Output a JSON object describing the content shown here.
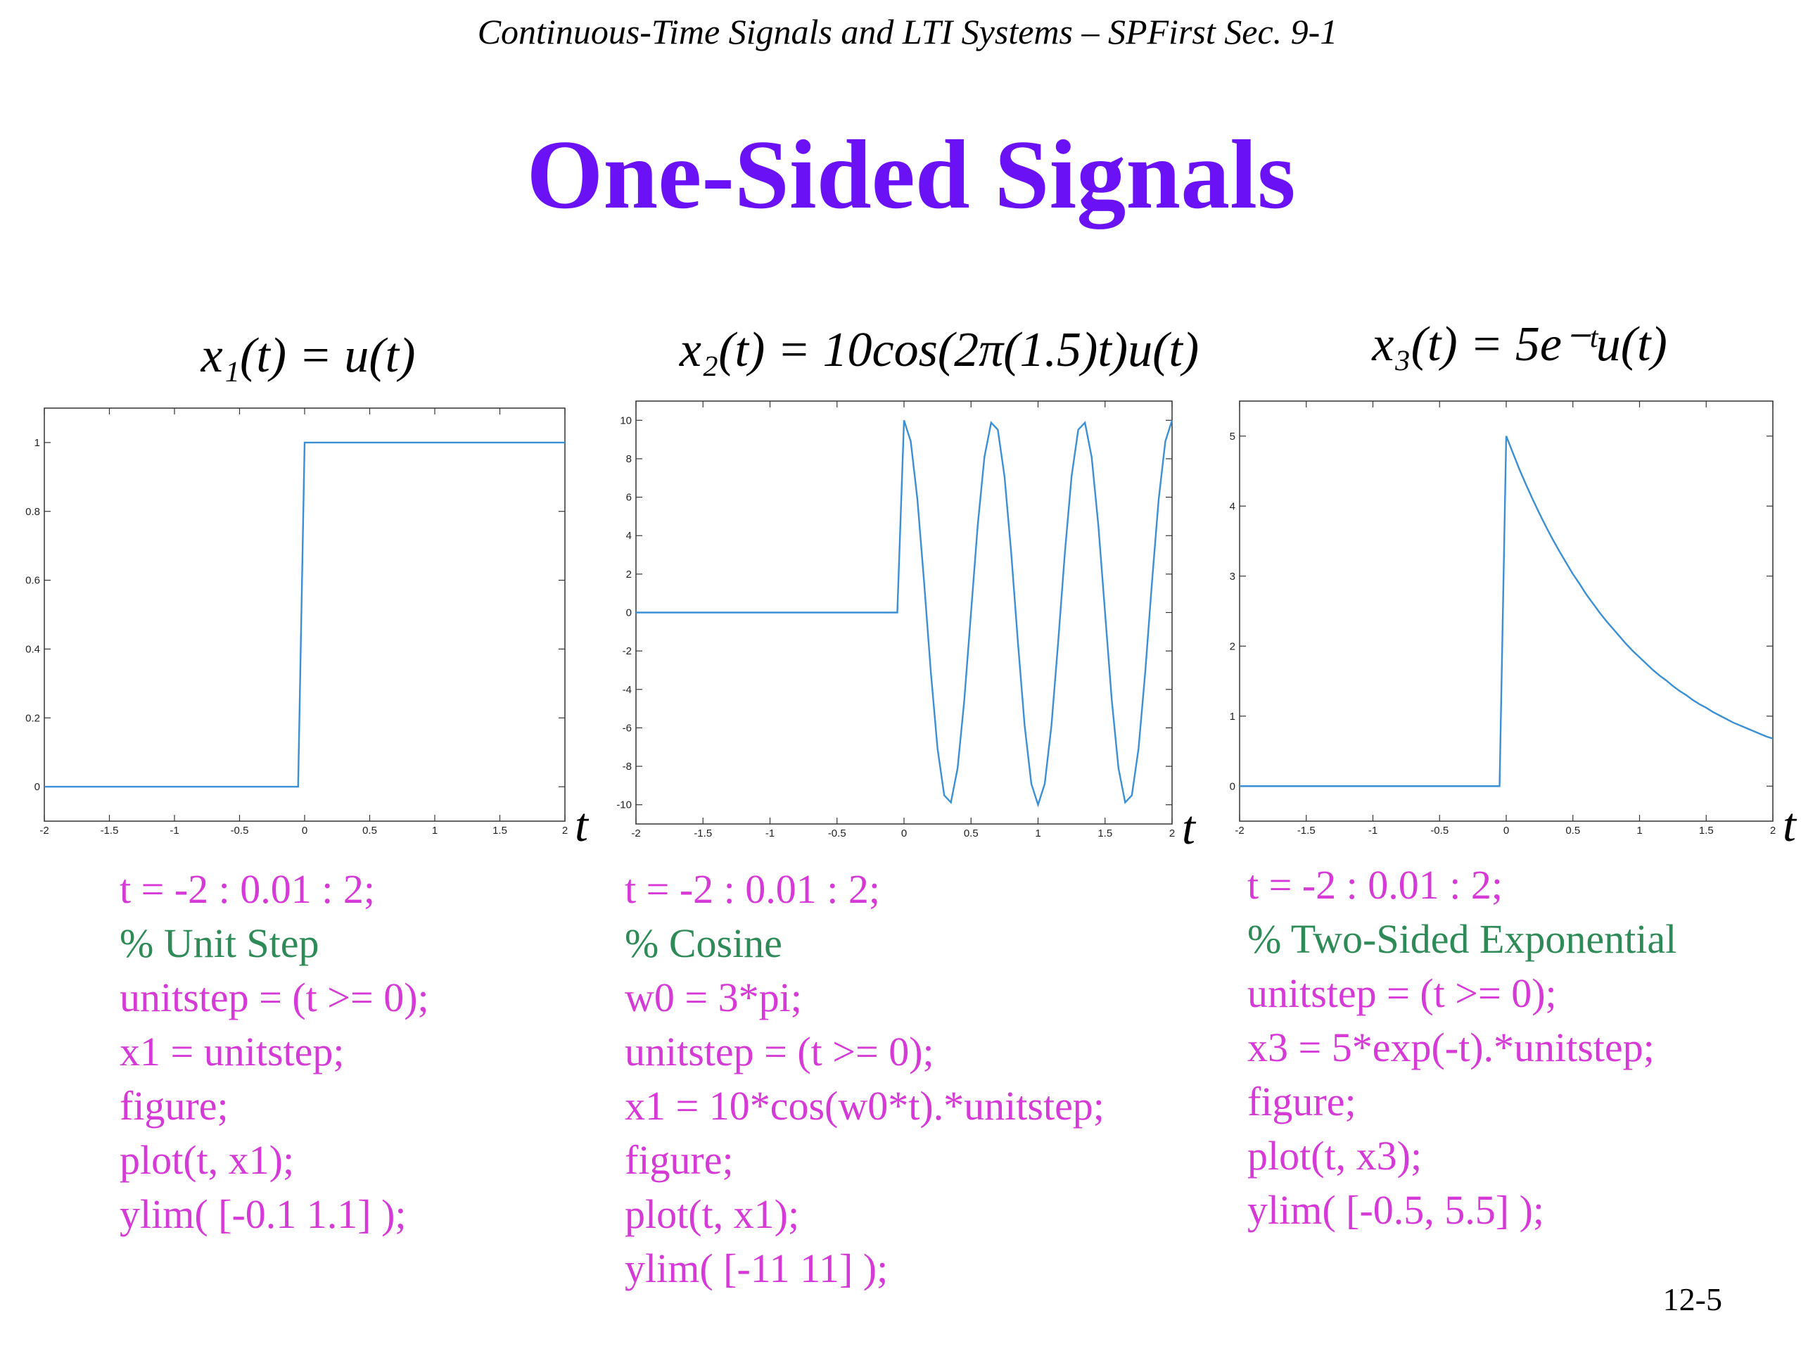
{
  "header": "Continuous-Time Signals and LTI Systems – SPFirst Sec. 9-1",
  "title": "One-Sided Signals",
  "page_number": "12-5",
  "chart_data": [
    {
      "type": "line",
      "title": "x₁(t) = u(t)",
      "xlabel": "t",
      "x": [
        -2,
        -1.95,
        -1.9,
        -1.85,
        -1.8,
        -1.75,
        -1.7,
        -1.65,
        -1.6,
        -1.55,
        -1.5,
        -1.45,
        -1.4,
        -1.35,
        -1.3,
        -1.25,
        -1.2,
        -1.15,
        -1.1,
        -1.05,
        -1,
        -0.95,
        -0.9,
        -0.85,
        -0.8,
        -0.75,
        -0.7,
        -0.65,
        -0.6,
        -0.55,
        -0.5,
        -0.45,
        -0.4,
        -0.35,
        -0.3,
        -0.25,
        -0.2,
        -0.15,
        -0.1,
        -0.05,
        0,
        0.05,
        0.1,
        0.15,
        0.2,
        0.25,
        0.3,
        0.35,
        0.4,
        0.45,
        0.5,
        0.55,
        0.6,
        0.65,
        0.7,
        0.75,
        0.8,
        0.85,
        0.9,
        0.95,
        1,
        1.05,
        1.1,
        1.15,
        1.2,
        1.25,
        1.3,
        1.35,
        1.4,
        1.45,
        1.5,
        1.55,
        1.6,
        1.65,
        1.7,
        1.75,
        1.8,
        1.85,
        1.9,
        1.95,
        2
      ],
      "series": [
        {
          "color": "#3a8fd5",
          "values": [
            0,
            0,
            0,
            0,
            0,
            0,
            0,
            0,
            0,
            0,
            0,
            0,
            0,
            0,
            0,
            0,
            0,
            0,
            0,
            0,
            0,
            0,
            0,
            0,
            0,
            0,
            0,
            0,
            0,
            0,
            0,
            0,
            0,
            0,
            0,
            0,
            0,
            0,
            0,
            0,
            1,
            1,
            1,
            1,
            1,
            1,
            1,
            1,
            1,
            1,
            1,
            1,
            1,
            1,
            1,
            1,
            1,
            1,
            1,
            1,
            1,
            1,
            1,
            1,
            1,
            1,
            1,
            1,
            1,
            1,
            1,
            1,
            1,
            1,
            1,
            1,
            1,
            1,
            1,
            1,
            1
          ]
        }
      ],
      "xlim": [
        -2,
        2
      ],
      "ylim": [
        -0.1,
        1.1
      ],
      "xticks": [
        -2,
        -1.5,
        -1,
        -0.5,
        0,
        0.5,
        1,
        1.5,
        2
      ],
      "yticks": [
        0,
        0.2,
        0.4,
        0.6,
        0.8,
        1
      ]
    },
    {
      "type": "line",
      "title": "x₂(t) = 10cos(2π(1.5)t)u(t)",
      "xlabel": "t",
      "x": [
        -2,
        -1.95,
        -1.9,
        -1.85,
        -1.8,
        -1.75,
        -1.7,
        -1.65,
        -1.6,
        -1.55,
        -1.5,
        -1.45,
        -1.4,
        -1.35,
        -1.3,
        -1.25,
        -1.2,
        -1.15,
        -1.1,
        -1.05,
        -1,
        -0.95,
        -0.9,
        -0.85,
        -0.8,
        -0.75,
        -0.7,
        -0.65,
        -0.6,
        -0.55,
        -0.5,
        -0.45,
        -0.4,
        -0.35,
        -0.3,
        -0.25,
        -0.2,
        -0.15,
        -0.1,
        -0.05,
        0,
        0.05,
        0.1,
        0.15,
        0.2,
        0.25,
        0.3,
        0.35,
        0.4,
        0.45,
        0.5,
        0.55,
        0.6,
        0.65,
        0.7,
        0.75,
        0.8,
        0.85,
        0.9,
        0.95,
        1,
        1.05,
        1.1,
        1.15,
        1.2,
        1.25,
        1.3,
        1.35,
        1.4,
        1.45,
        1.5,
        1.55,
        1.6,
        1.65,
        1.7,
        1.75,
        1.8,
        1.85,
        1.9,
        1.95,
        2
      ],
      "series": [
        {
          "color": "#3a8fd5",
          "values": [
            0,
            0,
            0,
            0,
            0,
            0,
            0,
            0,
            0,
            0,
            0,
            0,
            0,
            0,
            0,
            0,
            0,
            0,
            0,
            0,
            0,
            0,
            0,
            0,
            0,
            0,
            0,
            0,
            0,
            0,
            0,
            0,
            0,
            0,
            0,
            0,
            0,
            0,
            0,
            0,
            10,
            8.91,
            5.88,
            1.56,
            -3.09,
            -7.07,
            -9.51,
            -9.88,
            -8.09,
            -4.54,
            0,
            4.54,
            8.09,
            9.88,
            9.51,
            7.07,
            3.09,
            -1.56,
            -5.88,
            -8.91,
            -10,
            -8.91,
            -5.88,
            -1.56,
            3.09,
            7.07,
            9.51,
            9.88,
            8.09,
            4.54,
            0,
            -4.54,
            -8.09,
            -9.88,
            -9.51,
            -7.07,
            -3.09,
            1.56,
            5.88,
            8.91,
            10
          ]
        }
      ],
      "xlim": [
        -2,
        2
      ],
      "ylim": [
        -11,
        11
      ],
      "xticks": [
        -2,
        -1.5,
        -1,
        -0.5,
        0,
        0.5,
        1,
        1.5,
        2
      ],
      "yticks": [
        -10,
        -8,
        -6,
        -4,
        -2,
        0,
        2,
        4,
        6,
        8,
        10
      ]
    },
    {
      "type": "line",
      "title": "x₃(t) = 5e⁻ᵗu(t)",
      "xlabel": "t",
      "x": [
        -2,
        -1.95,
        -1.9,
        -1.85,
        -1.8,
        -1.75,
        -1.7,
        -1.65,
        -1.6,
        -1.55,
        -1.5,
        -1.45,
        -1.4,
        -1.35,
        -1.3,
        -1.25,
        -1.2,
        -1.15,
        -1.1,
        -1.05,
        -1,
        -0.95,
        -0.9,
        -0.85,
        -0.8,
        -0.75,
        -0.7,
        -0.65,
        -0.6,
        -0.55,
        -0.5,
        -0.45,
        -0.4,
        -0.35,
        -0.3,
        -0.25,
        -0.2,
        -0.15,
        -0.1,
        -0.05,
        0,
        0.05,
        0.1,
        0.15,
        0.2,
        0.25,
        0.3,
        0.35,
        0.4,
        0.45,
        0.5,
        0.55,
        0.6,
        0.65,
        0.7,
        0.75,
        0.8,
        0.85,
        0.9,
        0.95,
        1,
        1.05,
        1.1,
        1.15,
        1.2,
        1.25,
        1.3,
        1.35,
        1.4,
        1.45,
        1.5,
        1.55,
        1.6,
        1.65,
        1.7,
        1.75,
        1.8,
        1.85,
        1.9,
        1.95,
        2
      ],
      "series": [
        {
          "color": "#3a8fd5",
          "values": [
            0,
            0,
            0,
            0,
            0,
            0,
            0,
            0,
            0,
            0,
            0,
            0,
            0,
            0,
            0,
            0,
            0,
            0,
            0,
            0,
            0,
            0,
            0,
            0,
            0,
            0,
            0,
            0,
            0,
            0,
            0,
            0,
            0,
            0,
            0,
            0,
            0,
            0,
            0,
            0,
            5,
            4.76,
            4.52,
            4.3,
            4.09,
            3.89,
            3.7,
            3.52,
            3.35,
            3.19,
            3.03,
            2.89,
            2.74,
            2.61,
            2.48,
            2.36,
            2.25,
            2.14,
            2.03,
            1.93,
            1.84,
            1.75,
            1.66,
            1.58,
            1.51,
            1.43,
            1.36,
            1.3,
            1.23,
            1.17,
            1.12,
            1.06,
            1.01,
            0.96,
            0.91,
            0.87,
            0.83,
            0.79,
            0.75,
            0.71,
            0.68
          ]
        }
      ],
      "xlim": [
        -2,
        2
      ],
      "ylim": [
        -0.5,
        5.5
      ],
      "xticks": [
        -2,
        -1.5,
        -1,
        -0.5,
        0,
        0.5,
        1,
        1.5,
        2
      ],
      "yticks": [
        0,
        1,
        2,
        3,
        4,
        5
      ]
    }
  ],
  "code": [
    [
      "t = -2 : 0.01 : 2;",
      "% Unit Step",
      "unitstep = (t >= 0);",
      "x1 = unitstep;",
      "figure;",
      "plot(t, x1);",
      "ylim( [-0.1 1.1] );"
    ],
    [
      "t = -2 : 0.01 : 2;",
      "% Cosine",
      "w0 = 3*pi;",
      "unitstep = (t >= 0);",
      "x1 = 10*cos(w0*t).*unitstep;",
      "figure;",
      "plot(t, x1);",
      "ylim( [-11 11] );"
    ],
    [
      "t = -2 : 0.01 : 2;",
      "% Two-Sided Exponential",
      "unitstep = (t >= 0);",
      "x3 = 5*exp(-t).*unitstep;",
      "figure;",
      "plot(t, x3);",
      "ylim( [-0.5, 5.5] );"
    ]
  ]
}
